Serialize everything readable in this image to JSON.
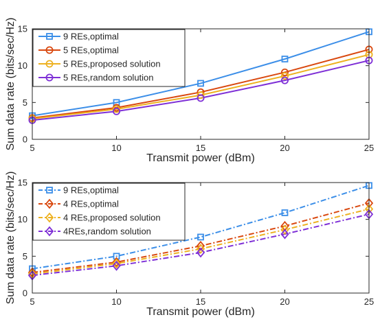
{
  "chart_data": [
    {
      "type": "line",
      "title": "",
      "xlabel": "Transmit power (dBm)",
      "ylabel": "Sum data rate (bits/sec/Hz)",
      "x": [
        5,
        10,
        15,
        20,
        25
      ],
      "xlim": [
        5,
        25
      ],
      "ylim": [
        0,
        15
      ],
      "xticks": [
        5,
        10,
        15,
        20,
        25
      ],
      "yticks": [
        0,
        5,
        10,
        15
      ],
      "grid": false,
      "legend_position": "top-left",
      "series": [
        {
          "name": "9 REs,optimal",
          "color": "#3b8ee8",
          "marker": "square",
          "line": "solid",
          "values": [
            3.2,
            5.0,
            7.6,
            10.9,
            14.6
          ]
        },
        {
          "name": "5 REs,optimal",
          "color": "#d9480f",
          "marker": "circle",
          "line": "solid",
          "values": [
            2.9,
            4.3,
            6.4,
            9.1,
            12.2
          ]
        },
        {
          "name": "5 REs,proposed solution",
          "color": "#edb120",
          "marker": "circle",
          "line": "solid",
          "values": [
            2.8,
            4.1,
            6.0,
            8.6,
            11.5
          ]
        },
        {
          "name": "5 REs,random solution",
          "color": "#7e2fd6",
          "marker": "circle",
          "line": "solid",
          "values": [
            2.6,
            3.8,
            5.6,
            8.0,
            10.7
          ]
        }
      ]
    },
    {
      "type": "line",
      "title": "",
      "xlabel": "Transmit power (dBm)",
      "ylabel": "Sum data rate (bits/sec/Hz)",
      "x": [
        5,
        10,
        15,
        20,
        25
      ],
      "xlim": [
        5,
        25
      ],
      "ylim": [
        0,
        15
      ],
      "xticks": [
        5,
        10,
        15,
        20,
        25
      ],
      "yticks": [
        0,
        5,
        10,
        15
      ],
      "grid": false,
      "legend_position": "top-left",
      "series": [
        {
          "name": "9 REs,optimal",
          "color": "#3b8ee8",
          "marker": "square",
          "line": "dashdot",
          "values": [
            3.3,
            5.0,
            7.6,
            10.9,
            14.6
          ]
        },
        {
          "name": "4 REs,optimal",
          "color": "#d9480f",
          "marker": "diamond",
          "line": "dashdot",
          "values": [
            2.8,
            4.2,
            6.4,
            9.1,
            12.2
          ]
        },
        {
          "name": "4 REs,proposed solution",
          "color": "#edb120",
          "marker": "diamond",
          "line": "dashdot",
          "values": [
            2.6,
            4.0,
            6.0,
            8.6,
            11.4
          ]
        },
        {
          "name": "4REs,random solution",
          "color": "#7e2fd6",
          "marker": "diamond",
          "line": "dashdot",
          "values": [
            2.4,
            3.7,
            5.5,
            8.0,
            10.7
          ]
        }
      ]
    }
  ]
}
